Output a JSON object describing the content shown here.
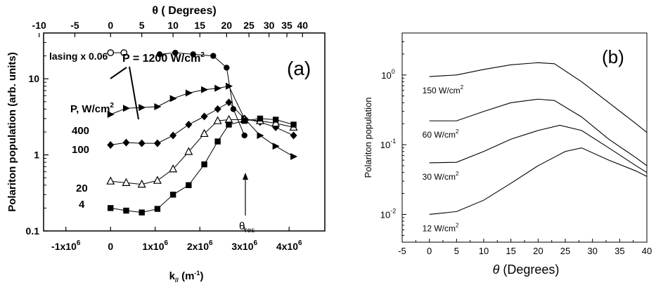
{
  "chart_data": [
    {
      "type": "line",
      "panel_label": "(a)",
      "xlabel": "k",
      "xlabel_sub": "//",
      "xlabel_unit": " (m",
      "xlabel_unit_sup": "-1",
      "xlabel_close": ")",
      "top_xlabel": "θ ( Degrees)",
      "ylabel": "Polariton population (arb. units)",
      "yscale": "log",
      "ylim": [
        0.1,
        40
      ],
      "xlim": [
        -1500000.0,
        4800000.0
      ],
      "x_ticks": [
        {
          "value": -1000000,
          "label": "-1x10",
          "exp": "6"
        },
        {
          "value": 0,
          "label": "0",
          "exp": ""
        },
        {
          "value": 1000000,
          "label": "1x10",
          "exp": "6"
        },
        {
          "value": 2000000,
          "label": "2x10",
          "exp": "6"
        },
        {
          "value": 3000000,
          "label": "3x10",
          "exp": "6"
        },
        {
          "value": 4000000,
          "label": "4x10",
          "exp": "6"
        }
      ],
      "top_ticks": [
        {
          "value": -1600000,
          "label": "-10"
        },
        {
          "value": -800000,
          "label": "-5"
        },
        {
          "value": 0,
          "label": "0"
        },
        {
          "value": 700000,
          "label": "5"
        },
        {
          "value": 1400000,
          "label": "10"
        },
        {
          "value": 2000000,
          "label": "15"
        },
        {
          "value": 2600000,
          "label": "20"
        },
        {
          "value": 3100000,
          "label": "25"
        },
        {
          "value": 3550000,
          "label": "30"
        },
        {
          "value": 3950000,
          "label": "35"
        },
        {
          "value": 4300000,
          "label": "40"
        }
      ],
      "y_ticks": [
        {
          "value": 0.1,
          "label": "0.1"
        },
        {
          "value": 1,
          "label": "1"
        },
        {
          "value": 10,
          "label": "10"
        }
      ],
      "series": [
        {
          "name": "lasing x 0.06",
          "marker": "open-circle",
          "x": [
            0,
            300000
          ],
          "y": [
            22,
            22
          ]
        },
        {
          "name": "1200",
          "marker": "filled-circle",
          "x": [
            1100000,
            1450000,
            1850000,
            2300000,
            2600000,
            2750000,
            3000000
          ],
          "y": [
            21,
            22,
            21,
            20,
            14,
            4,
            1.8
          ]
        },
        {
          "name": "400",
          "marker": "filled-right-triangle",
          "x": [
            0,
            350000,
            700000,
            1050000,
            1400000,
            1750000,
            2100000,
            2400000,
            2650000,
            3000000,
            3350000,
            3700000,
            4100000
          ],
          "y": [
            3.4,
            4.1,
            4.2,
            4.3,
            5.5,
            6.5,
            7.2,
            7.5,
            8.0,
            3.0,
            1.8,
            1.3,
            0.95
          ]
        },
        {
          "name": "100",
          "marker": "filled-diamond",
          "x": [
            0,
            350000,
            700000,
            1050000,
            1400000,
            1750000,
            2100000,
            2400000,
            2650000,
            3000000,
            3350000,
            3700000,
            4100000
          ],
          "y": [
            1.35,
            1.45,
            1.42,
            1.42,
            1.8,
            2.5,
            3.2,
            4.0,
            4.9,
            3.0,
            2.7,
            2.3,
            1.8
          ]
        },
        {
          "name": "20",
          "marker": "open-triangle",
          "x": [
            0,
            350000,
            700000,
            1050000,
            1400000,
            1750000,
            2100000,
            2400000,
            2650000,
            3000000,
            3350000,
            3700000,
            4100000
          ],
          "y": [
            0.45,
            0.43,
            0.41,
            0.46,
            0.65,
            1.1,
            1.9,
            2.8,
            2.9,
            2.9,
            2.8,
            2.6,
            2.3
          ]
        },
        {
          "name": "4",
          "marker": "filled-square",
          "x": [
            0,
            350000,
            700000,
            1050000,
            1400000,
            1750000,
            2100000,
            2400000,
            2650000,
            3000000,
            3350000,
            3700000,
            4100000
          ],
          "y": [
            0.2,
            0.185,
            0.175,
            0.195,
            0.3,
            0.4,
            0.75,
            1.5,
            2.5,
            2.8,
            3.0,
            2.9,
            2.5
          ]
        }
      ],
      "annotations": {
        "lasing": "lasing x 0.06",
        "power_main": "P = 1200 W/cm",
        "power_main_sup": "2",
        "power_unit": "P, W/cm",
        "power_unit_sup": "2",
        "label_400": "400",
        "label_100": "100",
        "label_20": "20",
        "label_4": "4",
        "theta": "θ",
        "theta_sub": "res"
      }
    },
    {
      "type": "line",
      "panel_label": "(b)",
      "xlabel_symbol": "θ",
      "xlabel": " (Degrees)",
      "ylabel": "Polariton population",
      "yscale": "log",
      "xlim": [
        -5,
        40
      ],
      "ylim": [
        0.004,
        4
      ],
      "x_ticks": [
        -5,
        0,
        5,
        10,
        15,
        20,
        25,
        30,
        35,
        40
      ],
      "y_ticks": [
        {
          "value": 0.01,
          "base": "10",
          "exp": "-2"
        },
        {
          "value": 0.1,
          "base": "10",
          "exp": "-1"
        },
        {
          "value": 1,
          "base": "10",
          "exp": "0"
        }
      ],
      "series": [
        {
          "name": "150 W/cm",
          "name_sup": "2",
          "x": [
            0,
            5,
            10,
            15,
            20,
            23,
            28,
            33,
            38,
            40
          ],
          "y": [
            0.95,
            1.0,
            1.2,
            1.4,
            1.5,
            1.45,
            0.8,
            0.4,
            0.2,
            0.15
          ]
        },
        {
          "name": "60 W/cm",
          "name_sup": "2",
          "x": [
            0,
            5,
            10,
            15,
            20,
            23,
            28,
            33,
            38,
            40
          ],
          "y": [
            0.22,
            0.22,
            0.3,
            0.4,
            0.45,
            0.43,
            0.25,
            0.12,
            0.065,
            0.05
          ]
        },
        {
          "name": "30 W/cm",
          "name_sup": "2",
          "x": [
            0,
            5,
            10,
            15,
            20,
            24,
            28,
            33,
            38,
            40
          ],
          "y": [
            0.055,
            0.056,
            0.08,
            0.12,
            0.16,
            0.19,
            0.16,
            0.09,
            0.05,
            0.04
          ]
        },
        {
          "name": "12 W/cm",
          "name_sup": "2",
          "x": [
            0,
            5,
            10,
            15,
            20,
            25,
            28,
            33,
            38,
            40
          ],
          "y": [
            0.01,
            0.011,
            0.016,
            0.028,
            0.05,
            0.08,
            0.09,
            0.06,
            0.042,
            0.035
          ]
        }
      ]
    }
  ]
}
